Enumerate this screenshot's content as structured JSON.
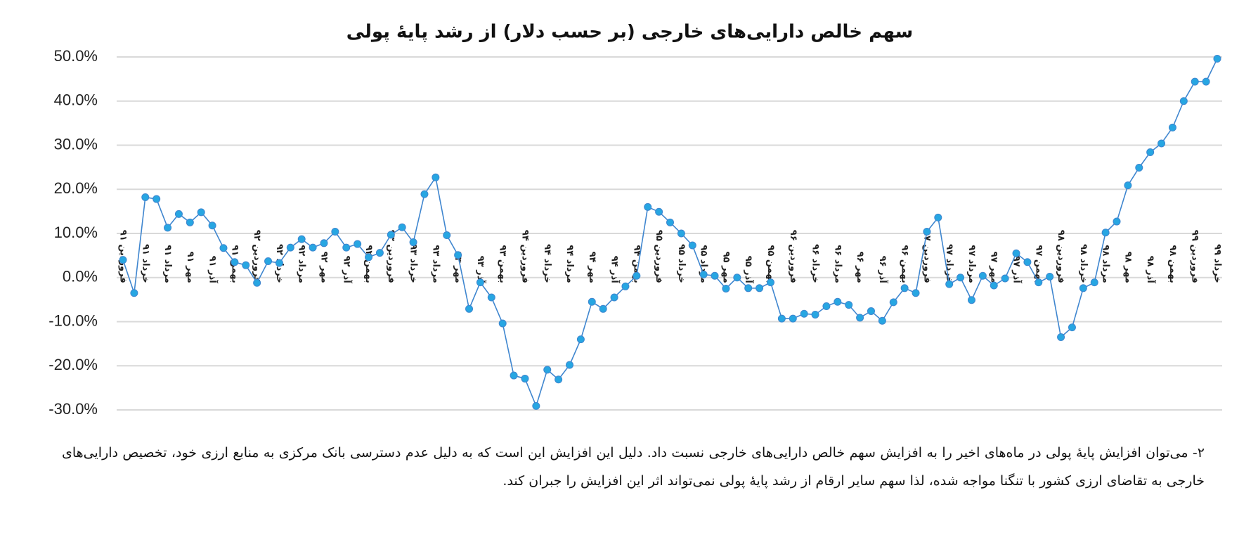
{
  "chart_data": {
    "type": "line",
    "title": "سهم خالص دارایی‌های خارجی (بر حسب دلار) از رشد پایهٔ پولی",
    "categories": [
      "فروردین ۹۱",
      null,
      "خرداد ۹۱",
      null,
      "مرداد ۹۱",
      null,
      "مهر ۹۱",
      null,
      "آذر ۹۱",
      null,
      "بهمن ۹۱",
      null,
      "فروردین ۹۲",
      null,
      "خرداد ۹۲",
      null,
      "مرداد ۹۲",
      null,
      "مهر ۹۲",
      null,
      "آذر ۹۲",
      null,
      "بهمن ۹۲",
      null,
      "فروردین ۹۳",
      null,
      "خرداد ۹۳",
      null,
      "مرداد ۹۳",
      null,
      "مهر ۹۳",
      null,
      "آذر ۹۳",
      null,
      "بهمن ۹۳",
      null,
      "فروردین ۹۴",
      null,
      "خرداد ۹۴",
      null,
      "مرداد ۹۴",
      null,
      "مهر ۹۴",
      null,
      "آذر ۹۴",
      null,
      "بهمن ۹۴",
      null,
      "فروردین ۹۵",
      null,
      "خرداد ۹۵",
      null,
      "مرداد ۹۵",
      null,
      "مهر ۹۵",
      null,
      "آذر ۹۵",
      null,
      "بهمن ۹۵",
      null,
      "فروردین ۹۶",
      null,
      "خرداد ۹۶",
      null,
      "مرداد ۹۶",
      null,
      "مهر ۹۶",
      null,
      "آذر ۹۶",
      null,
      "بهمن ۹۶",
      null,
      "فروردین ۹۷",
      null,
      "خرداد ۹۷",
      null,
      "مرداد ۹۷",
      null,
      "مهر ۹۷",
      null,
      "آذر ۹۷",
      null,
      "بهمن ۹۷",
      null,
      "فروردین ۹۸",
      null,
      "خرداد ۹۸",
      null,
      "مرداد ۹۸",
      null,
      "مهر ۹۸",
      null,
      "آذر ۹۸",
      null,
      "بهمن ۹۸",
      null,
      "فروردین ۹۹",
      null,
      "خرداد ۹۹"
    ],
    "series": [
      {
        "name": "سهم خالص دارایی‌های خارجی",
        "color": "#3f86cf",
        "marker_color": "#27a6e2",
        "values": [
          4.0,
          -3.5,
          18.2,
          17.8,
          11.3,
          14.4,
          12.5,
          14.8,
          11.8,
          6.7,
          3.5,
          2.8,
          -1.2,
          3.7,
          3.3,
          6.8,
          8.7,
          6.8,
          7.8,
          10.4,
          6.8,
          7.6,
          4.6,
          5.6,
          9.7,
          11.4,
          8.0,
          18.9,
          22.7,
          9.6,
          5.1,
          -7.1,
          -1.1,
          -4.5,
          -10.4,
          -22.2,
          -22.9,
          -29.1,
          -20.9,
          -23.1,
          -19.8,
          -14.0,
          -5.5,
          -7.1,
          -4.5,
          -2.0,
          0.4,
          16.0,
          14.9,
          12.5,
          10.0,
          7.3,
          0.7,
          0.4,
          -2.5,
          0.0,
          -2.4,
          -2.4,
          -1.1,
          -9.3,
          -9.3,
          -8.2,
          -8.4,
          -6.5,
          -5.5,
          -6.2,
          -9.1,
          -7.6,
          -9.8,
          -5.6,
          -2.4,
          -3.5,
          10.4,
          13.6,
          -1.5,
          0.0,
          -5.1,
          0.4,
          -1.8,
          -0.2,
          5.5,
          3.5,
          -1.1,
          0.2,
          -13.5,
          -11.3,
          -2.4,
          -1.1,
          10.2,
          12.7,
          20.9,
          24.9,
          28.4,
          30.4,
          34.0,
          40.0,
          44.4,
          44.4,
          49.6
        ]
      }
    ],
    "ylim": [
      -30,
      50
    ],
    "yticks": [
      {
        "value": -30,
        "label": "-30.0%"
      },
      {
        "value": -20,
        "label": "-20.0%"
      },
      {
        "value": -10,
        "label": "-10.0%"
      },
      {
        "value": 0,
        "label": "0.0%"
      },
      {
        "value": 10,
        "label": "10.0%"
      },
      {
        "value": 20,
        "label": "20.0%"
      },
      {
        "value": 30,
        "label": "30.0%"
      },
      {
        "value": 40,
        "label": "40.0%"
      },
      {
        "value": 50,
        "label": "50.0%"
      }
    ],
    "grid": true
  },
  "footnote": "۲- می‌توان افزایش پایهٔ پولی در ماه‌های اخیر را به افزایش سهم خالص دارایی‌های خارجی نسبت داد. دلیل این افزایش این است که به دلیل عدم دسترسی بانک مرکزی به منابع ارزی خود، تخصیص دارایی‌های خارجی به تقاضای ارزی کشور با تنگنا مواجه شده، لذا سهم سایر ارقام از رشد پایهٔ پولی نمی‌تواند اثر این افزایش را جبران کند."
}
